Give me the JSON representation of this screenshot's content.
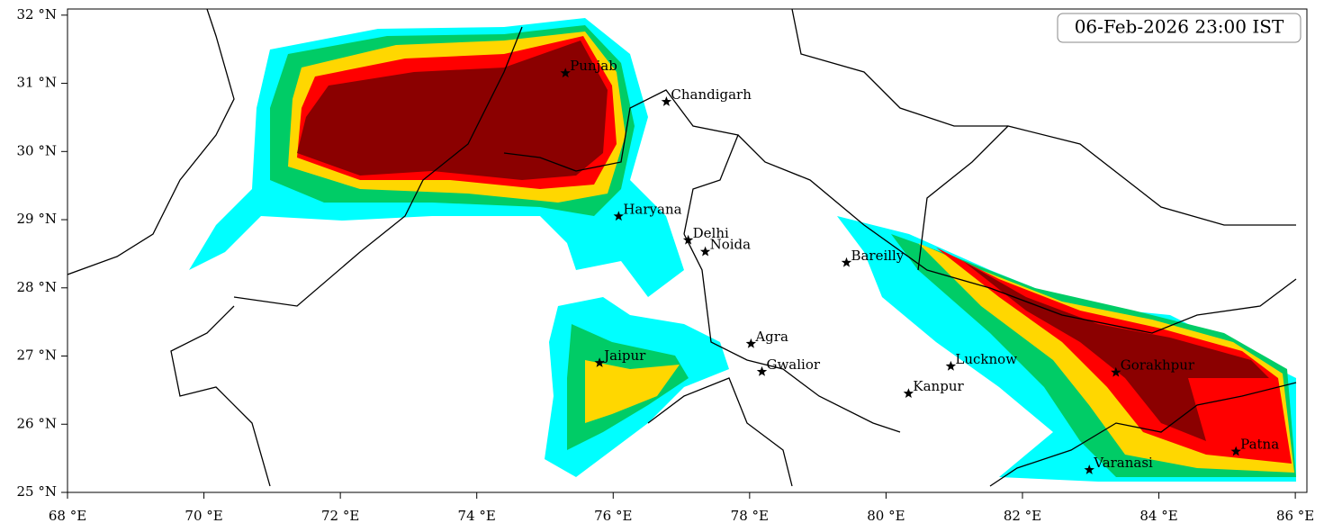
{
  "title": "06-Feb-2026 23:00 IST",
  "xlim": [
    68,
    86.17
  ],
  "ylim": [
    25,
    32.09
  ],
  "xticks": [
    {
      "value": 68,
      "label": "68 °E"
    },
    {
      "value": 70,
      "label": "70 °E"
    },
    {
      "value": 72,
      "label": "72 °E"
    },
    {
      "value": 74,
      "label": "74 °E"
    },
    {
      "value": 76,
      "label": "76 °E"
    },
    {
      "value": 78,
      "label": "78 °E"
    },
    {
      "value": 80,
      "label": "80 °E"
    },
    {
      "value": 82,
      "label": "82 °E"
    },
    {
      "value": 84,
      "label": "84 °E"
    },
    {
      "value": 86,
      "label": "86 °E"
    }
  ],
  "yticks": [
    {
      "value": 25,
      "label": "25 °N"
    },
    {
      "value": 26,
      "label": "26 °N"
    },
    {
      "value": 27,
      "label": "27 °N"
    },
    {
      "value": 28,
      "label": "28 °N"
    },
    {
      "value": 29,
      "label": "29 °N"
    },
    {
      "value": 30,
      "label": "30 °N"
    },
    {
      "value": 31,
      "label": "31 °N"
    },
    {
      "value": 32,
      "label": "32 °N"
    }
  ],
  "cities": [
    {
      "name": "Punjab",
      "lon": 75.3,
      "lat": 31.15
    },
    {
      "name": "Chandigarh",
      "lon": 76.78,
      "lat": 30.73
    },
    {
      "name": "Haryana",
      "lon": 76.08,
      "lat": 29.05
    },
    {
      "name": "Delhi",
      "lon": 77.1,
      "lat": 28.7
    },
    {
      "name": "Noida",
      "lon": 77.35,
      "lat": 28.53
    },
    {
      "name": "Bareilly",
      "lon": 79.42,
      "lat": 28.37
    },
    {
      "name": "Agra",
      "lon": 78.02,
      "lat": 27.18
    },
    {
      "name": "Jaipur",
      "lon": 75.8,
      "lat": 26.9
    },
    {
      "name": "Gwalior",
      "lon": 78.18,
      "lat": 26.77
    },
    {
      "name": "Lucknow",
      "lon": 80.95,
      "lat": 26.85
    },
    {
      "name": "Kanpur",
      "lon": 80.33,
      "lat": 26.45
    },
    {
      "name": "Gorakhpur",
      "lon": 83.37,
      "lat": 26.76
    },
    {
      "name": "Patna",
      "lon": 85.13,
      "lat": 25.6
    },
    {
      "name": "Varanasi",
      "lon": 82.98,
      "lat": 25.33
    }
  ]
}
